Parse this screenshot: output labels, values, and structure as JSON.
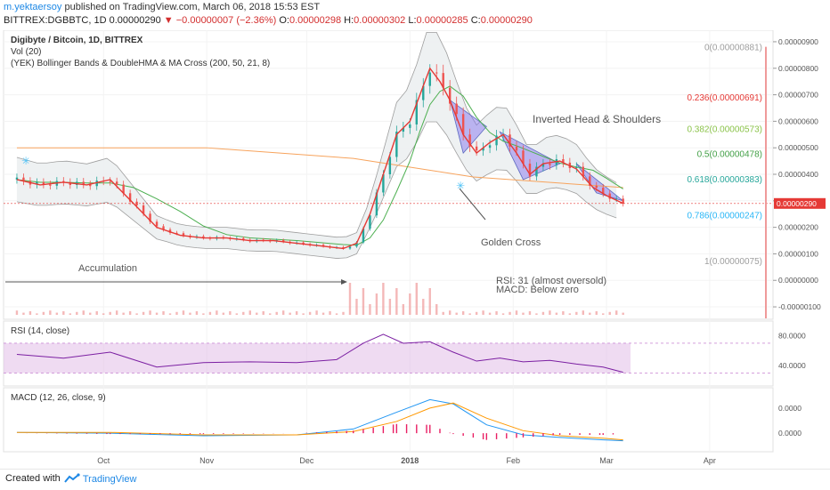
{
  "header": {
    "author": "m.yektaersoy",
    "published": "published on TradingView.com, March 06, 2018 15:53 EST",
    "symbol_line": "BITTREX:DGBBTC, 1D",
    "last": "0.00000290",
    "change": "−0.00000007 (−2.36%)",
    "ohlc": {
      "o_label": "O:",
      "o": "0.00000298",
      "h_label": "H:",
      "h": "0.00000302",
      "l_label": "L:",
      "l": "0.00000285",
      "c_label": "C:",
      "c": "0.00000290"
    }
  },
  "legend": {
    "title": "Digibyte / Bitcoin, 1D, BITTREX",
    "vol": "Vol (20)",
    "indicator": "(YEK) Bollinger Bands & DoubleHMA & MA Cross (200, 50, 21, 8)",
    "rsi": "RSI (14, close)",
    "macd": "MACD (12, 26, close, 9)"
  },
  "annotations": {
    "head_shoulders": "Inverted Head & Shoulders",
    "golden_cross": "Golden Cross",
    "accumulation": "Accumulation",
    "rsi_note": "RSI: 31 (almost oversold)",
    "macd_note": "MACD: Below zero"
  },
  "footer": {
    "created_with": "Created with",
    "brand": "TradingView"
  },
  "colors": {
    "up": "#26a69a",
    "down": "#ef5350",
    "fast_ma": "#e53935",
    "slow_ma": "#4caf50",
    "ma200": "#f7a35c",
    "bb": "#9e9e9e",
    "pattern": "#7b68ee",
    "rsi_band": "#e1bee7",
    "rsi_line": "#7b1fa2",
    "macd": "#2196f3",
    "signal": "#ff9800",
    "hist": "#e91e63",
    "last_price": "#e53935"
  },
  "chart_data": [
    {
      "type": "line",
      "title": "Digibyte / Bitcoin, 1D, BITTREX",
      "unit": "BTC",
      "x_ticks": [
        "Oct",
        "Nov",
        "Dec",
        "2018",
        "Feb",
        "Mar",
        "Apr"
      ],
      "y_ticks": [
        "0.00000900",
        "0.00000800",
        "0.00000700",
        "0.00000600",
        "0.00000500",
        "0.00000400",
        "0.00000300",
        "0.00000200",
        "0.00000100",
        "0.00000000",
        "-0.00000100"
      ],
      "ylim": [
        -1.3e-06,
        9.3e-06
      ],
      "last_price": "0.00000290",
      "close_series": {
        "name": "close",
        "x": [
          "2017-09-05",
          "2017-09-12",
          "2017-09-19",
          "2017-09-26",
          "2017-10-03",
          "2017-10-10",
          "2017-10-17",
          "2017-10-24",
          "2017-10-31",
          "2017-11-07",
          "2017-11-14",
          "2017-11-21",
          "2017-11-28",
          "2017-12-05",
          "2017-12-12",
          "2017-12-16",
          "2017-12-20",
          "2017-12-24",
          "2017-12-28",
          "2018-01-01",
          "2018-01-04",
          "2018-01-07",
          "2018-01-10",
          "2018-01-13",
          "2018-01-17",
          "2018-01-21",
          "2018-01-25",
          "2018-01-29",
          "2018-02-02",
          "2018-02-06",
          "2018-02-10",
          "2018-02-15",
          "2018-02-20",
          "2018-02-25",
          "2018-03-01",
          "2018-03-06"
        ],
        "values": [
          3.8e-06,
          3.6e-06,
          3.7e-06,
          3.6e-06,
          3.8e-06,
          2.9e-06,
          2e-06,
          1.7e-06,
          1.6e-06,
          1.6e-06,
          1.5e-06,
          1.5e-06,
          1.4e-06,
          1.3e-06,
          1.2e-06,
          1.4e-06,
          2.5e-06,
          4e-06,
          5.5e-06,
          6e-06,
          7e-06,
          8e-06,
          7.5e-06,
          6.8e-06,
          5.5e-06,
          4.8e-06,
          5.2e-06,
          5.5e-06,
          4.8e-06,
          4e-06,
          4.4e-06,
          4.5e-06,
          4.2e-06,
          3.5e-06,
          3.2e-06,
          2.9e-06
        ]
      },
      "fibonacci": [
        {
          "label": "0(0.00000881)",
          "value": 8.81e-06,
          "color": "#9e9e9e"
        },
        {
          "label": "0.236(0.00000691)",
          "value": 6.91e-06,
          "color": "#e53935"
        },
        {
          "label": "0.382(0.00000573)",
          "value": 5.73e-06,
          "color": "#8bc34a"
        },
        {
          "label": "0.5(0.00000478)",
          "value": 4.78e-06,
          "color": "#43a047"
        },
        {
          "label": "0.618(0.00000383)",
          "value": 3.83e-06,
          "color": "#26a69a"
        },
        {
          "label": "0.786(0.00000247)",
          "value": 2.47e-06,
          "color": "#29b6f6"
        },
        {
          "label": "1(0.00000075)",
          "value": 7.5e-07,
          "color": "#9e9e9e"
        }
      ]
    },
    {
      "type": "line",
      "title": "RSI (14, close)",
      "y_ticks": [
        "80.0000",
        "40.0000"
      ],
      "ylim": [
        15,
        95
      ],
      "band": [
        30,
        70
      ],
      "x": [
        "2017-09-05",
        "2017-09-19",
        "2017-10-03",
        "2017-10-17",
        "2017-10-31",
        "2017-11-14",
        "2017-11-28",
        "2017-12-10",
        "2017-12-18",
        "2017-12-24",
        "2017-12-30",
        "2018-01-07",
        "2018-01-14",
        "2018-01-21",
        "2018-01-28",
        "2018-02-04",
        "2018-02-12",
        "2018-02-20",
        "2018-02-28",
        "2018-03-06"
      ],
      "values": [
        55,
        50,
        58,
        38,
        44,
        45,
        44,
        48,
        70,
        82,
        70,
        72,
        58,
        46,
        50,
        45,
        47,
        42,
        38,
        31
      ]
    },
    {
      "type": "line",
      "title": "MACD (12, 26, close, 9)",
      "y_ticks": [
        "0.0000",
        "0.0000"
      ],
      "ylim": [
        -2e-07,
        5e-07
      ],
      "x": [
        "2017-09-05",
        "2017-10-03",
        "2017-10-31",
        "2017-11-28",
        "2017-12-15",
        "2017-12-28",
        "2018-01-07",
        "2018-01-14",
        "2018-01-24",
        "2018-02-04",
        "2018-02-15",
        "2018-02-28",
        "2018-03-06"
      ],
      "series": [
        {
          "name": "MACD",
          "values": [
            1e-08,
            0.0,
            -3e-08,
            -2e-08,
            5e-08,
            2.5e-07,
            4e-07,
            3.5e-07,
            1e-07,
            -2e-08,
            -5e-08,
            -8e-08,
            -9e-08
          ]
        },
        {
          "name": "Signal",
          "values": [
            1e-08,
            1e-08,
            -2e-08,
            -2e-08,
            2e-08,
            1.4e-07,
            3e-07,
            3.6e-07,
            1.8e-07,
            3e-08,
            -3e-08,
            -6e-08,
            -8e-08
          ]
        }
      ]
    }
  ]
}
